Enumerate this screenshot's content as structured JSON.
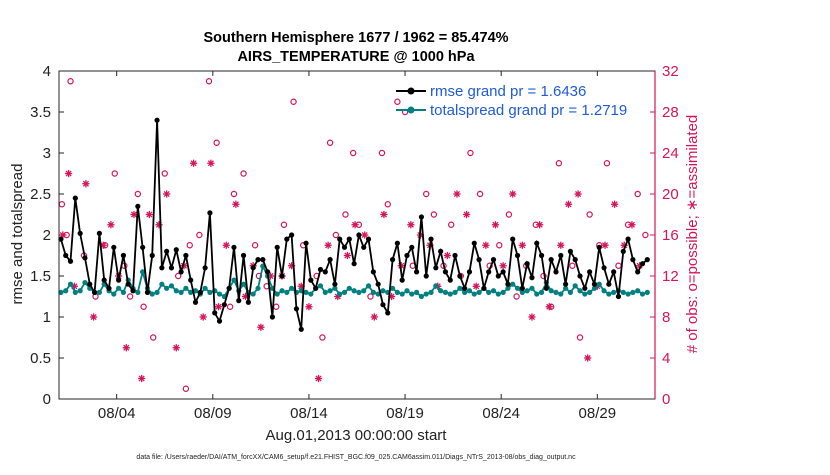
{
  "chart_data": {
    "type": "line",
    "title": "Southern Hemisphere 1677 / 1962 = 85.474%",
    "subtitle": "AIRS_TEMPERATURE @ 1000 hPa",
    "xlabel": "Aug.01,2013 00:00:00 start",
    "ylabel_left": "rmse and totalspread",
    "ylabel_right": "# of obs: o=possible; ∗=assimilated",
    "xlim": [
      1.0,
      32.0
    ],
    "ylim_left": [
      0,
      4
    ],
    "ylim_right": [
      0,
      32
    ],
    "x_ticks": [
      4,
      9,
      14,
      19,
      24,
      29
    ],
    "x_tick_labels": [
      "08/04",
      "08/09",
      "08/14",
      "08/19",
      "08/24",
      "08/29"
    ],
    "y_ticks_left": [
      "0",
      "0.5",
      "1",
      "1.5",
      "2",
      "2.5",
      "3",
      "3.5",
      "4"
    ],
    "y_ticks_right": [
      "0",
      "4",
      "8",
      "12",
      "16",
      "20",
      "24",
      "28",
      "32"
    ],
    "legend_location": "top-right",
    "footnote": "data file: /Users/raeder/DAI/ATM_forcXX/CAM6_setup/f.e21.FHIST_BGC.f09_025.CAM6assim.011/Diags_NTrS_2013-08/obs_diag_output.nc",
    "series": [
      {
        "name": "rmse grand pr = 1.6436",
        "axis": "left",
        "color": "#000000",
        "marker": "filled-circle",
        "x": [
          1.1,
          1.35,
          1.6,
          1.85,
          2.1,
          2.35,
          2.6,
          2.85,
          3.1,
          3.35,
          3.6,
          3.85,
          4.1,
          4.35,
          4.6,
          4.85,
          5.1,
          5.35,
          5.6,
          5.85,
          6.1,
          6.35,
          6.6,
          6.85,
          7.1,
          7.35,
          7.6,
          7.85,
          8.1,
          8.35,
          8.6,
          8.85,
          9.1,
          9.35,
          9.6,
          9.85,
          10.1,
          10.35,
          10.6,
          10.85,
          11.1,
          11.35,
          11.6,
          11.85,
          12.1,
          12.35,
          12.6,
          12.85,
          13.1,
          13.35,
          13.6,
          13.85,
          14.1,
          14.35,
          14.6,
          14.85,
          15.1,
          15.35,
          15.6,
          15.85,
          16.1,
          16.35,
          16.6,
          16.85,
          17.1,
          17.35,
          17.6,
          17.85,
          18.1,
          18.35,
          18.6,
          18.85,
          19.1,
          19.35,
          19.6,
          19.85,
          20.1,
          20.35,
          20.6,
          20.85,
          21.1,
          21.35,
          21.6,
          21.85,
          22.1,
          22.35,
          22.6,
          22.85,
          23.1,
          23.35,
          23.6,
          23.85,
          24.1,
          24.35,
          24.6,
          24.85,
          25.1,
          25.35,
          25.6,
          25.85,
          26.1,
          26.35,
          26.6,
          26.85,
          27.1,
          27.35,
          27.6,
          27.85,
          28.1,
          28.35,
          28.6,
          28.85,
          29.1,
          29.35,
          29.6,
          29.85,
          30.1,
          30.35,
          30.6,
          30.85,
          31.1,
          31.35,
          31.6
        ],
        "values": [
          1.95,
          1.75,
          1.68,
          2.45,
          2.02,
          1.72,
          1.4,
          1.3,
          2.02,
          1.45,
          1.35,
          1.85,
          1.45,
          1.75,
          1.4,
          1.32,
          2.35,
          1.85,
          1.3,
          1.75,
          3.4,
          1.6,
          1.8,
          1.6,
          1.82,
          1.55,
          1.75,
          1.45,
          1.18,
          1.3,
          1.6,
          2.27,
          1.05,
          0.95,
          1.15,
          1.35,
          1.85,
          1.2,
          1.75,
          1.18,
          1.6,
          1.7,
          1.7,
          1.55,
          1.0,
          1.85,
          1.5,
          1.95,
          2.0,
          1.1,
          0.85,
          1.9,
          1.45,
          1.35,
          1.58,
          1.55,
          1.7,
          1.4,
          1.95,
          1.85,
          1.95,
          1.65,
          2.0,
          1.85,
          1.95,
          1.55,
          1.4,
          1.15,
          1.05,
          1.7,
          1.9,
          1.45,
          1.75,
          1.85,
          1.55,
          2.22,
          1.5,
          1.95,
          1.6,
          1.8,
          1.55,
          1.45,
          1.75,
          1.5,
          1.35,
          1.55,
          1.9,
          1.7,
          1.35,
          1.55,
          1.7,
          1.5,
          1.55,
          1.4,
          1.95,
          1.75,
          1.35,
          1.65,
          1.48,
          1.9,
          1.75,
          1.35,
          1.7,
          1.55,
          1.75,
          1.4,
          1.8,
          1.7,
          1.5,
          1.35,
          1.55,
          1.4,
          1.85,
          1.6,
          1.4,
          1.55,
          1.25,
          1.8,
          1.95,
          1.7,
          1.55,
          1.65,
          1.7
        ]
      },
      {
        "name": "totalspread grand pr = 1.2719",
        "axis": "left",
        "color": "#008080",
        "marker": "filled-circle",
        "x": [
          1.1,
          1.35,
          1.6,
          1.85,
          2.1,
          2.35,
          2.6,
          2.85,
          3.1,
          3.35,
          3.6,
          3.85,
          4.1,
          4.35,
          4.6,
          4.85,
          5.1,
          5.35,
          5.6,
          5.85,
          6.1,
          6.35,
          6.6,
          6.85,
          7.1,
          7.35,
          7.6,
          7.85,
          8.1,
          8.35,
          8.6,
          8.85,
          9.1,
          9.35,
          9.6,
          9.85,
          10.1,
          10.35,
          10.6,
          10.85,
          11.1,
          11.35,
          11.6,
          11.85,
          12.1,
          12.35,
          12.6,
          12.85,
          13.1,
          13.35,
          13.6,
          13.85,
          14.1,
          14.35,
          14.6,
          14.85,
          15.1,
          15.35,
          15.6,
          15.85,
          16.1,
          16.35,
          16.6,
          16.85,
          17.1,
          17.35,
          17.6,
          17.85,
          18.1,
          18.35,
          18.6,
          18.85,
          19.1,
          19.35,
          19.6,
          19.85,
          20.1,
          20.35,
          20.6,
          20.85,
          21.1,
          21.35,
          21.6,
          21.85,
          22.1,
          22.35,
          22.6,
          22.85,
          23.1,
          23.35,
          23.6,
          23.85,
          24.1,
          24.35,
          24.6,
          24.85,
          25.1,
          25.35,
          25.6,
          25.85,
          26.1,
          26.35,
          26.6,
          26.85,
          27.1,
          27.35,
          27.6,
          27.85,
          28.1,
          28.35,
          28.6,
          28.85,
          29.1,
          29.35,
          29.6,
          29.85,
          30.1,
          30.35,
          30.6,
          30.85,
          31.1,
          31.35,
          31.6
        ],
        "values": [
          1.3,
          1.32,
          1.4,
          1.3,
          1.32,
          1.42,
          1.35,
          1.3,
          1.3,
          1.4,
          1.32,
          1.28,
          1.35,
          1.3,
          1.45,
          1.35,
          1.3,
          1.55,
          1.35,
          1.28,
          1.3,
          1.4,
          1.35,
          1.38,
          1.32,
          1.3,
          1.35,
          1.3,
          1.32,
          1.28,
          1.35,
          1.3,
          1.32,
          1.28,
          1.25,
          1.35,
          1.45,
          1.32,
          1.4,
          1.3,
          1.28,
          1.35,
          1.62,
          1.5,
          1.35,
          1.28,
          1.32,
          1.3,
          1.35,
          1.3,
          1.32,
          1.3,
          1.28,
          1.35,
          1.38,
          1.3,
          1.32,
          1.35,
          1.28,
          1.3,
          1.35,
          1.32,
          1.3,
          1.32,
          1.38,
          1.3,
          1.28,
          1.32,
          1.3,
          1.35,
          1.3,
          1.28,
          1.32,
          1.28,
          1.3,
          1.25,
          1.28,
          1.3,
          1.38,
          1.32,
          1.3,
          1.28,
          1.3,
          1.35,
          1.3,
          1.32,
          1.28,
          1.3,
          1.35,
          1.3,
          1.32,
          1.28,
          1.3,
          1.35,
          1.4,
          1.35,
          1.3,
          1.32,
          1.35,
          1.28,
          1.3,
          1.42,
          1.32,
          1.3,
          1.28,
          1.35,
          1.3,
          1.38,
          1.32,
          1.28,
          1.3,
          1.35,
          1.4,
          1.32,
          1.28,
          1.3,
          1.32,
          1.3,
          1.28,
          1.3,
          1.32,
          1.28,
          1.3
        ]
      },
      {
        "name": "obs possible",
        "axis": "right",
        "color": "#d6145a",
        "marker": "open-circle",
        "x": [
          1.15,
          1.4,
          1.6,
          2.3,
          2.9,
          3.4,
          3.9,
          4.4,
          4.7,
          5.1,
          5.4,
          5.9,
          6.5,
          7.2,
          7.6,
          7.8,
          8.3,
          8.8,
          9.2,
          9.9,
          10.1,
          10.6,
          11.2,
          11.4,
          11.8,
          12.3,
          12.7,
          13.2,
          13.7,
          14.4,
          14.7,
          15.1,
          15.4,
          15.9,
          16.3,
          16.6,
          17.2,
          17.8,
          18.1,
          18.6,
          19.0,
          19.4,
          20.1,
          20.5,
          21.0,
          21.4,
          21.9,
          22.4,
          22.9,
          23.4,
          23.9,
          24.4,
          24.8,
          25.3,
          25.8,
          26.2,
          26.6,
          27.0,
          27.7,
          28.1,
          28.6,
          29.1,
          29.5,
          30.1,
          30.6,
          31.1,
          31.5
        ],
        "values": [
          19,
          16,
          31,
          14,
          10,
          15,
          22,
          13,
          10,
          20,
          9,
          6,
          22,
          12,
          1,
          15,
          16,
          31,
          25,
          9,
          20,
          22,
          15,
          12,
          11,
          9,
          17,
          29,
          15,
          12,
          6,
          25,
          16,
          18,
          24,
          17,
          10,
          24,
          19,
          29,
          28,
          13,
          20,
          18,
          13,
          17,
          12,
          24,
          20,
          13,
          15,
          18,
          10,
          13,
          17,
          12,
          9,
          23,
          13,
          6,
          18,
          15,
          23,
          13,
          17,
          20,
          16
        ]
      },
      {
        "name": "obs assimilated",
        "axis": "right",
        "color": "#d6145a",
        "marker": "asterisk",
        "x": [
          1.2,
          1.5,
          1.8,
          2.4,
          2.8,
          3.3,
          3.7,
          4.1,
          4.5,
          4.9,
          5.3,
          5.7,
          6.2,
          6.6,
          7.1,
          7.5,
          8.0,
          8.5,
          8.9,
          9.3,
          9.7,
          10.2,
          10.7,
          11.1,
          11.5,
          12.0,
          12.6,
          13.1,
          13.6,
          14.0,
          14.5,
          15.0,
          15.5,
          16.0,
          16.4,
          16.9,
          17.4,
          17.9,
          18.3,
          18.8,
          19.3,
          19.8,
          20.3,
          20.7,
          21.2,
          21.7,
          22.2,
          22.7,
          23.2,
          23.7,
          24.1,
          24.6,
          25.1,
          25.6,
          26.0,
          26.5,
          27.1,
          27.5,
          28.0,
          28.5,
          29.0,
          29.4,
          29.9,
          30.4,
          30.8,
          31.2
        ],
        "values": [
          16,
          22,
          11,
          21,
          8,
          15,
          17,
          12,
          5,
          18,
          2,
          18,
          17,
          20,
          5,
          13,
          23,
          8,
          23,
          9,
          15,
          19,
          10,
          13,
          7,
          12,
          12,
          13,
          11,
          9,
          2,
          15,
          10,
          14,
          17,
          16,
          8,
          18,
          10,
          13,
          17,
          16,
          15,
          11,
          14,
          20,
          18,
          11,
          15,
          17,
          13,
          20,
          15,
          8,
          17,
          9,
          15,
          19,
          20,
          4,
          11,
          15,
          19,
          15,
          17,
          13
        ]
      }
    ]
  }
}
